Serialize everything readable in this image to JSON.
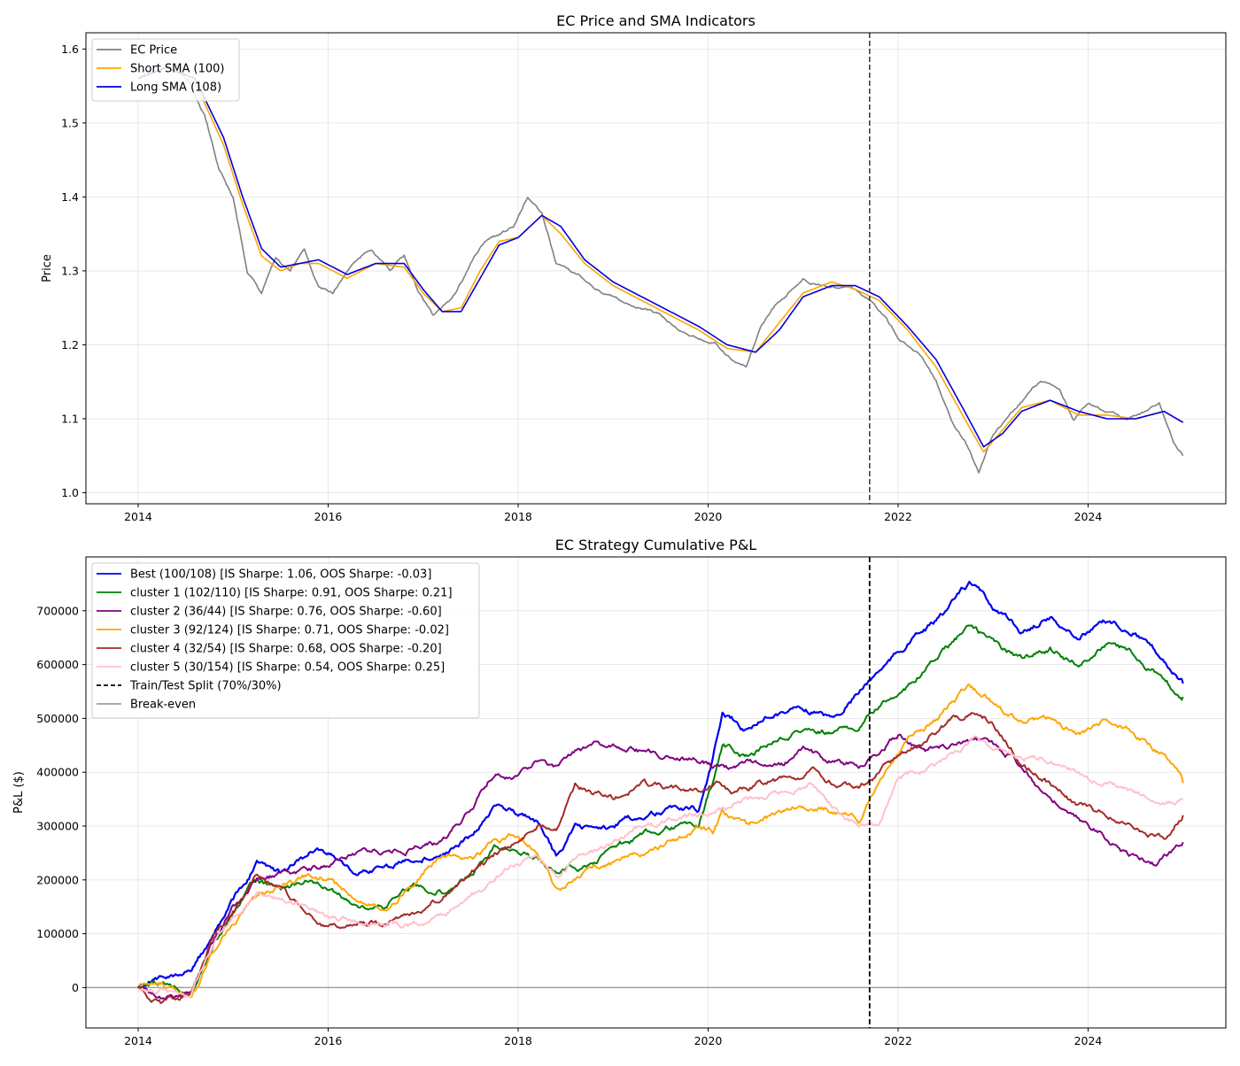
{
  "chart_data": [
    {
      "type": "line",
      "title": "EC Price and SMA Indicators",
      "xlabel": "",
      "ylabel": "Price",
      "xlim": [
        2013.45,
        2025.45
      ],
      "ylim": [
        0.985,
        1.622
      ],
      "x_ticks": [
        2014,
        2016,
        2018,
        2020,
        2022,
        2024
      ],
      "x_tick_labels": [
        "2014",
        "2016",
        "2018",
        "2020",
        "2022",
        "2024"
      ],
      "y_ticks": [
        1.0,
        1.1,
        1.2,
        1.3,
        1.4,
        1.5,
        1.6
      ],
      "y_tick_labels": [
        "1.0",
        "1.1",
        "1.2",
        "1.3",
        "1.4",
        "1.5",
        "1.6"
      ],
      "grid": true,
      "legend_position": "upper-left",
      "split_x": 2021.7,
      "series": [
        {
          "name": "EC Price",
          "color": "#808080",
          "x": [
            2014.0,
            2014.2,
            2014.4,
            2014.55,
            2014.7,
            2014.85,
            2015.0,
            2015.15,
            2015.3,
            2015.45,
            2015.6,
            2015.75,
            2015.9,
            2016.05,
            2016.25,
            2016.45,
            2016.65,
            2016.8,
            2016.95,
            2017.1,
            2017.3,
            2017.5,
            2017.65,
            2017.8,
            2017.95,
            2018.1,
            2018.25,
            2018.4,
            2018.55,
            2018.7,
            2018.9,
            2019.1,
            2019.3,
            2019.5,
            2019.7,
            2019.9,
            2020.1,
            2020.25,
            2020.4,
            2020.55,
            2020.7,
            2020.85,
            2021.0,
            2021.15,
            2021.35,
            2021.5,
            2021.7,
            2021.85,
            2022.0,
            2022.2,
            2022.4,
            2022.55,
            2022.7,
            2022.85,
            2023.0,
            2023.15,
            2023.35,
            2023.5,
            2023.7,
            2023.85,
            2024.0,
            2024.2,
            2024.4,
            2024.6,
            2024.75,
            2024.9,
            2025.0
          ],
          "values": [
            1.56,
            1.57,
            1.58,
            1.55,
            1.51,
            1.44,
            1.4,
            1.3,
            1.27,
            1.32,
            1.3,
            1.33,
            1.28,
            1.27,
            1.31,
            1.33,
            1.3,
            1.32,
            1.27,
            1.24,
            1.26,
            1.31,
            1.34,
            1.35,
            1.36,
            1.4,
            1.38,
            1.31,
            1.3,
            1.29,
            1.27,
            1.26,
            1.25,
            1.24,
            1.22,
            1.21,
            1.2,
            1.18,
            1.17,
            1.22,
            1.25,
            1.27,
            1.29,
            1.28,
            1.28,
            1.28,
            1.26,
            1.24,
            1.21,
            1.19,
            1.15,
            1.1,
            1.07,
            1.03,
            1.08,
            1.1,
            1.13,
            1.15,
            1.14,
            1.1,
            1.12,
            1.11,
            1.1,
            1.11,
            1.12,
            1.07,
            1.05
          ]
        },
        {
          "name": "Short SMA (100)",
          "color": "#ffa500",
          "x": [
            2014.0,
            2014.3,
            2014.6,
            2014.9,
            2015.1,
            2015.3,
            2015.5,
            2015.7,
            2015.9,
            2016.2,
            2016.5,
            2016.8,
            2017.0,
            2017.2,
            2017.4,
            2017.6,
            2017.8,
            2018.0,
            2018.25,
            2018.45,
            2018.7,
            2019.0,
            2019.3,
            2019.6,
            2019.9,
            2020.2,
            2020.5,
            2020.75,
            2021.0,
            2021.3,
            2021.55,
            2021.8,
            2022.1,
            2022.4,
            2022.7,
            2022.9,
            2023.1,
            2023.3,
            2023.6,
            2023.9,
            2024.2,
            2024.5,
            2024.8,
            2025.0
          ],
          "values": [
            1.56,
            1.575,
            1.555,
            1.47,
            1.39,
            1.32,
            1.3,
            1.31,
            1.31,
            1.29,
            1.31,
            1.305,
            1.27,
            1.245,
            1.25,
            1.3,
            1.34,
            1.345,
            1.375,
            1.35,
            1.31,
            1.28,
            1.26,
            1.24,
            1.22,
            1.195,
            1.19,
            1.23,
            1.27,
            1.285,
            1.275,
            1.26,
            1.22,
            1.17,
            1.1,
            1.055,
            1.085,
            1.115,
            1.125,
            1.105,
            1.105,
            1.1,
            1.11,
            1.095
          ]
        },
        {
          "name": "Long SMA (108)",
          "color": "#0000dd",
          "x": [
            2014.0,
            2014.3,
            2014.6,
            2014.9,
            2015.1,
            2015.3,
            2015.5,
            2015.7,
            2015.9,
            2016.2,
            2016.5,
            2016.8,
            2017.0,
            2017.2,
            2017.4,
            2017.6,
            2017.8,
            2018.0,
            2018.25,
            2018.45,
            2018.7,
            2019.0,
            2019.3,
            2019.6,
            2019.9,
            2020.2,
            2020.5,
            2020.75,
            2021.0,
            2021.3,
            2021.55,
            2021.8,
            2022.1,
            2022.4,
            2022.7,
            2022.9,
            2023.1,
            2023.3,
            2023.6,
            2023.9,
            2024.2,
            2024.5,
            2024.8,
            2025.0
          ],
          "values": [
            1.56,
            1.575,
            1.56,
            1.48,
            1.4,
            1.33,
            1.305,
            1.31,
            1.315,
            1.295,
            1.31,
            1.31,
            1.275,
            1.245,
            1.245,
            1.29,
            1.335,
            1.345,
            1.375,
            1.36,
            1.315,
            1.285,
            1.265,
            1.245,
            1.225,
            1.2,
            1.19,
            1.22,
            1.265,
            1.28,
            1.28,
            1.265,
            1.225,
            1.18,
            1.11,
            1.062,
            1.08,
            1.11,
            1.125,
            1.11,
            1.1,
            1.1,
            1.11,
            1.095
          ]
        }
      ]
    },
    {
      "type": "line",
      "title": "EC Strategy Cumulative P&L",
      "xlabel": "",
      "ylabel": "P&L ($)",
      "xlim": [
        2013.45,
        2025.45
      ],
      "ylim": [
        -75000,
        800000
      ],
      "x_ticks": [
        2014,
        2016,
        2018,
        2020,
        2022,
        2024
      ],
      "x_tick_labels": [
        "2014",
        "2016",
        "2018",
        "2020",
        "2022",
        "2024"
      ],
      "y_ticks": [
        0,
        100000,
        200000,
        300000,
        400000,
        500000,
        600000,
        700000
      ],
      "y_tick_labels": [
        "0",
        "100000",
        "200000",
        "300000",
        "400000",
        "500000",
        "600000",
        "700000"
      ],
      "grid": true,
      "legend_position": "upper-left",
      "split_x": 2021.7,
      "split_label": "Train/Test Split (70%/30%)",
      "breakeven_label": "Break-even",
      "series": [
        {
          "name": "Best (100/108) [IS Sharpe: 1.06, OOS Sharpe: -0.03]",
          "color": "#0000ee",
          "x": [
            2014.0,
            2014.25,
            2014.55,
            2014.8,
            2015.0,
            2015.25,
            2015.5,
            2015.8,
            2016.0,
            2016.3,
            2016.6,
            2016.9,
            2017.2,
            2017.5,
            2017.75,
            2018.0,
            2018.2,
            2018.4,
            2018.6,
            2018.8,
            2019.0,
            2019.3,
            2019.6,
            2019.9,
            2020.05,
            2020.15,
            2020.4,
            2020.7,
            2021.0,
            2021.3,
            2021.6,
            2021.8,
            2022.1,
            2022.4,
            2022.75,
            2023.0,
            2023.3,
            2023.6,
            2023.9,
            2024.2,
            2024.5,
            2024.8,
            2025.0
          ],
          "values": [
            0,
            20000,
            30000,
            100000,
            160000,
            230000,
            210000,
            250000,
            250000,
            210000,
            220000,
            240000,
            250000,
            280000,
            340000,
            320000,
            310000,
            240000,
            300000,
            290000,
            300000,
            320000,
            330000,
            330000,
            420000,
            510000,
            480000,
            510000,
            520000,
            500000,
            550000,
            590000,
            640000,
            680000,
            750000,
            710000,
            660000,
            690000,
            650000,
            680000,
            660000,
            610000,
            565000
          ]
        },
        {
          "name": "cluster 1 (102/110) [IS Sharpe: 0.91, OOS Sharpe: 0.21]",
          "color": "#008000",
          "x": [
            2014.0,
            2014.25,
            2014.55,
            2014.8,
            2015.0,
            2015.25,
            2015.5,
            2015.8,
            2016.0,
            2016.3,
            2016.6,
            2016.9,
            2017.2,
            2017.5,
            2017.75,
            2018.0,
            2018.2,
            2018.4,
            2018.6,
            2018.8,
            2019.0,
            2019.3,
            2019.6,
            2019.9,
            2020.05,
            2020.15,
            2020.4,
            2020.7,
            2021.0,
            2021.3,
            2021.6,
            2021.8,
            2022.1,
            2022.4,
            2022.75,
            2023.0,
            2023.3,
            2023.6,
            2023.9,
            2024.2,
            2024.5,
            2024.8,
            2025.0
          ],
          "values": [
            0,
            10000,
            -10000,
            80000,
            140000,
            200000,
            180000,
            200000,
            180000,
            150000,
            150000,
            190000,
            180000,
            210000,
            260000,
            250000,
            240000,
            210000,
            220000,
            230000,
            260000,
            280000,
            300000,
            300000,
            380000,
            450000,
            430000,
            460000,
            480000,
            470000,
            490000,
            520000,
            560000,
            610000,
            670000,
            640000,
            610000,
            630000,
            600000,
            640000,
            620000,
            570000,
            540000
          ]
        },
        {
          "name": "cluster 2 (36/44) [IS Sharpe: 0.76, OOS Sharpe: -0.60]",
          "color": "#800080",
          "x": [
            2014.0,
            2014.25,
            2014.55,
            2014.8,
            2015.0,
            2015.25,
            2015.5,
            2015.8,
            2016.0,
            2016.3,
            2016.6,
            2016.9,
            2017.2,
            2017.5,
            2017.75,
            2018.0,
            2018.2,
            2018.4,
            2018.6,
            2018.8,
            2019.0,
            2019.3,
            2019.6,
            2019.9,
            2020.05,
            2020.2,
            2020.5,
            2020.8,
            2021.0,
            2021.3,
            2021.6,
            2021.8,
            2022.0,
            2022.3,
            2022.6,
            2022.9,
            2023.2,
            2023.5,
            2023.8,
            2024.1,
            2024.4,
            2024.7,
            2025.0
          ],
          "values": [
            0,
            -20000,
            -10000,
            90000,
            150000,
            200000,
            210000,
            220000,
            230000,
            250000,
            250000,
            260000,
            270000,
            330000,
            400000,
            390000,
            420000,
            410000,
            440000,
            450000,
            450000,
            440000,
            430000,
            420000,
            410000,
            410000,
            420000,
            420000,
            440000,
            420000,
            410000,
            440000,
            470000,
            440000,
            450000,
            460000,
            430000,
            370000,
            320000,
            290000,
            250000,
            230000,
            270000
          ]
        },
        {
          "name": "cluster 3 (92/124) [IS Sharpe: 0.71, OOS Sharpe: -0.02]",
          "color": "#ffa500",
          "x": [
            2014.0,
            2014.25,
            2014.55,
            2014.8,
            2015.0,
            2015.25,
            2015.5,
            2015.8,
            2016.0,
            2016.3,
            2016.6,
            2016.9,
            2017.2,
            2017.5,
            2017.75,
            2018.0,
            2018.2,
            2018.4,
            2018.6,
            2018.8,
            2019.0,
            2019.3,
            2019.6,
            2019.9,
            2020.05,
            2020.15,
            2020.4,
            2020.7,
            2021.0,
            2021.3,
            2021.6,
            2021.8,
            2022.1,
            2022.4,
            2022.75,
            2023.0,
            2023.3,
            2023.6,
            2023.9,
            2024.2,
            2024.5,
            2024.8,
            2025.0
          ],
          "values": [
            0,
            10000,
            -20000,
            70000,
            120000,
            170000,
            190000,
            210000,
            200000,
            170000,
            150000,
            190000,
            250000,
            240000,
            270000,
            280000,
            250000,
            180000,
            200000,
            220000,
            230000,
            250000,
            270000,
            300000,
            290000,
            330000,
            300000,
            320000,
            340000,
            330000,
            310000,
            380000,
            460000,
            500000,
            560000,
            530000,
            490000,
            500000,
            470000,
            500000,
            470000,
            430000,
            380000
          ]
        },
        {
          "name": "cluster 4 (32/54) [IS Sharpe: 0.68, OOS Sharpe: -0.20]",
          "color": "#a52a2a",
          "x": [
            2014.0,
            2014.25,
            2014.55,
            2014.8,
            2015.0,
            2015.25,
            2015.5,
            2015.8,
            2016.0,
            2016.3,
            2016.6,
            2016.9,
            2017.2,
            2017.5,
            2017.75,
            2018.0,
            2018.2,
            2018.4,
            2018.6,
            2018.8,
            2019.0,
            2019.3,
            2019.6,
            2019.9,
            2020.1,
            2020.3,
            2020.6,
            2020.9,
            2021.1,
            2021.4,
            2021.6,
            2021.8,
            2022.0,
            2022.3,
            2022.6,
            2022.8,
            2023.0,
            2023.3,
            2023.6,
            2023.9,
            2024.2,
            2024.5,
            2024.8,
            2025.0
          ],
          "values": [
            0,
            -30000,
            -10000,
            100000,
            140000,
            210000,
            180000,
            140000,
            110000,
            120000,
            120000,
            140000,
            170000,
            210000,
            250000,
            270000,
            300000,
            300000,
            380000,
            360000,
            350000,
            380000,
            370000,
            370000,
            380000,
            360000,
            380000,
            390000,
            400000,
            370000,
            370000,
            400000,
            430000,
            460000,
            500000,
            510000,
            490000,
            420000,
            380000,
            340000,
            320000,
            290000,
            280000,
            320000
          ]
        },
        {
          "name": "cluster 5 (30/154) [IS Sharpe: 0.54, OOS Sharpe: 0.25]",
          "color": "#ffc0cb",
          "x": [
            2014.0,
            2014.25,
            2014.55,
            2014.8,
            2015.0,
            2015.25,
            2015.5,
            2015.8,
            2016.0,
            2016.3,
            2016.6,
            2016.9,
            2017.2,
            2017.5,
            2017.75,
            2018.0,
            2018.2,
            2018.4,
            2018.6,
            2018.8,
            2019.0,
            2019.3,
            2019.6,
            2019.9,
            2020.1,
            2020.3,
            2020.6,
            2020.9,
            2021.1,
            2021.4,
            2021.6,
            2021.8,
            2022.0,
            2022.3,
            2022.6,
            2022.8,
            2023.0,
            2023.3,
            2023.6,
            2023.9,
            2024.2,
            2024.5,
            2024.8,
            2025.0
          ],
          "values": [
            0,
            -10000,
            -20000,
            90000,
            130000,
            180000,
            170000,
            150000,
            130000,
            120000,
            110000,
            120000,
            130000,
            170000,
            200000,
            230000,
            240000,
            200000,
            240000,
            250000,
            270000,
            300000,
            310000,
            320000,
            330000,
            340000,
            350000,
            370000,
            380000,
            320000,
            300000,
            310000,
            390000,
            400000,
            430000,
            460000,
            440000,
            430000,
            420000,
            400000,
            380000,
            360000,
            340000,
            350000
          ]
        }
      ]
    }
  ]
}
